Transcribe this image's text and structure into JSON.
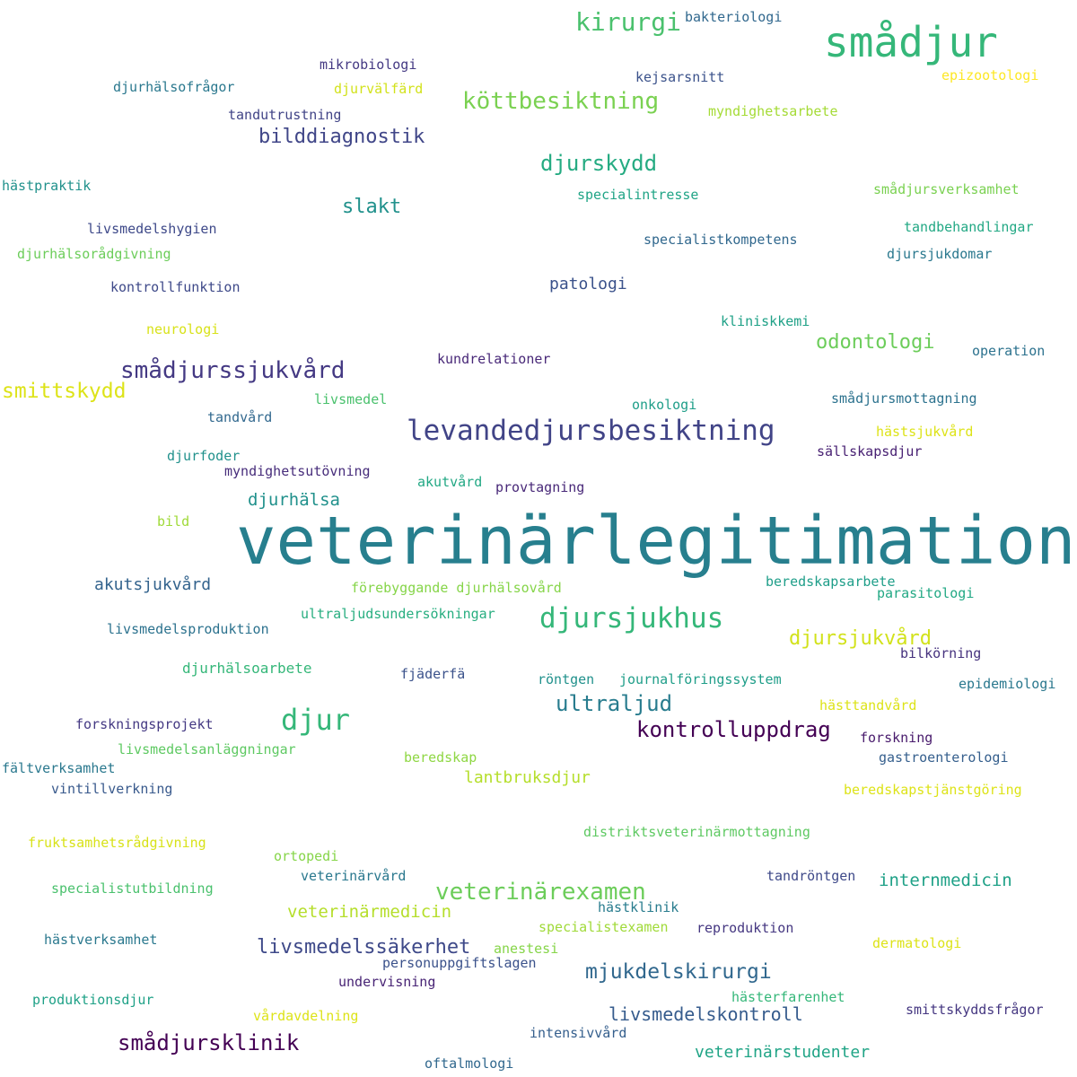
{
  "palette": {
    "dark_purple": "#46327e",
    "indigo": "#365c8d",
    "blue": "#3b528b",
    "teal": "#277f8e",
    "sea": "#1fa187",
    "green": "#4ac16d",
    "lime": "#a0da39",
    "yellow": "#dde318"
  },
  "words": [
    {
      "text": "veterinärlegitimation",
      "color": "#277f8e",
      "weight": 1.0
    },
    {
      "text": "smådjur",
      "color": "#35b779",
      "weight": 0.42
    },
    {
      "text": "kirurgi",
      "color": "#4ac16d",
      "weight": 0.28
    },
    {
      "text": "bakteriologi",
      "color": "#31688e",
      "weight": 0.14
    },
    {
      "text": "mikrobiologi",
      "color": "#443983",
      "weight": 0.14
    },
    {
      "text": "kejsarsnitt",
      "color": "#3b528b",
      "weight": 0.14
    },
    {
      "text": "epizootologi",
      "color": "#fde725",
      "weight": 0.14
    },
    {
      "text": "djurhälsofrågor",
      "color": "#2a788e",
      "weight": 0.14
    },
    {
      "text": "djurvälfärd",
      "color": "#d2e21b",
      "weight": 0.14
    },
    {
      "text": "köttbesiktning",
      "color": "#7ad151",
      "weight": 0.26
    },
    {
      "text": "myndighetsarbete",
      "color": "#a5db36",
      "weight": 0.14
    },
    {
      "text": "tandutrustning",
      "color": "#414487",
      "weight": 0.14
    },
    {
      "text": "bilddiagnostik",
      "color": "#404688",
      "weight": 0.24
    },
    {
      "text": "djurskydd",
      "color": "#25ab82",
      "weight": 0.26
    },
    {
      "text": "hästpraktik",
      "color": "#21918c",
      "weight": 0.14
    },
    {
      "text": "specialintresse",
      "color": "#20a486",
      "weight": 0.14
    },
    {
      "text": "smådjursverksamhet",
      "color": "#7ad151",
      "weight": 0.14
    },
    {
      "text": "slakt",
      "color": "#21918c",
      "weight": 0.24
    },
    {
      "text": "livsmedelshygien",
      "color": "#3e4989",
      "weight": 0.14
    },
    {
      "text": "tandbehandlingar",
      "color": "#22a884",
      "weight": 0.14
    },
    {
      "text": "specialistkompetens",
      "color": "#31688e",
      "weight": 0.14
    },
    {
      "text": "djurhälsorådgivning",
      "color": "#6ccd5a",
      "weight": 0.14
    },
    {
      "text": "djursjukdomar",
      "color": "#2a788e",
      "weight": 0.14
    },
    {
      "text": "patologi",
      "color": "#3b528b",
      "weight": 0.2
    },
    {
      "text": "kontrollfunktion",
      "color": "#3e4989",
      "weight": 0.14
    },
    {
      "text": "kliniskkemi",
      "color": "#1fa187",
      "weight": 0.14
    },
    {
      "text": "neurologi",
      "color": "#d8e219",
      "weight": 0.14
    },
    {
      "text": "odontologi",
      "color": "#6ccd5a",
      "weight": 0.24
    },
    {
      "text": "kundrelationer",
      "color": "#482878",
      "weight": 0.14
    },
    {
      "text": "operation",
      "color": "#2c728e",
      "weight": 0.14
    },
    {
      "text": "smådjurssjukvård",
      "color": "#443983",
      "weight": 0.28
    },
    {
      "text": "smittskydd",
      "color": "#dde318",
      "weight": 0.26
    },
    {
      "text": "livsmedel",
      "color": "#4ac16d",
      "weight": 0.14
    },
    {
      "text": "onkologi",
      "color": "#1f9e89",
      "weight": 0.14
    },
    {
      "text": "smådjursmottagning",
      "color": "#2c728e",
      "weight": 0.14
    },
    {
      "text": "tandvård",
      "color": "#31688e",
      "weight": 0.14
    },
    {
      "text": "levandedjursbesiktning",
      "color": "#414487",
      "weight": 0.33
    },
    {
      "text": "hästsjukvård",
      "color": "#dde318",
      "weight": 0.14
    },
    {
      "text": "djurfoder",
      "color": "#21918c",
      "weight": 0.14
    },
    {
      "text": "sällskapsdjur",
      "color": "#482173",
      "weight": 0.14
    },
    {
      "text": "myndighetsutövning",
      "color": "#472d7b",
      "weight": 0.14
    },
    {
      "text": "akutvård",
      "color": "#22a884",
      "weight": 0.14
    },
    {
      "text": "provtagning",
      "color": "#482878",
      "weight": 0.14
    },
    {
      "text": "djurhälsa",
      "color": "#21918c",
      "weight": 0.2
    },
    {
      "text": "bild",
      "color": "#a0da39",
      "weight": 0.14
    },
    {
      "text": "beredskapsarbete",
      "color": "#1f9e89",
      "weight": 0.14
    },
    {
      "text": "akutsjukvård",
      "color": "#33638d",
      "weight": 0.2
    },
    {
      "text": "förebyggande djurhälsovård",
      "color": "#86d549",
      "weight": 0.14
    },
    {
      "text": "parasitologi",
      "color": "#22a884",
      "weight": 0.14
    },
    {
      "text": "djursjukhus",
      "color": "#35b779",
      "weight": 0.33
    },
    {
      "text": "ultraljudsundersökningar",
      "color": "#28ae80",
      "weight": 0.14
    },
    {
      "text": "livsmedelsproduktion",
      "color": "#2c728e",
      "weight": 0.14
    },
    {
      "text": "djursjukvård",
      "color": "#d2e21b",
      "weight": 0.24
    },
    {
      "text": "bilkörning",
      "color": "#46327e",
      "weight": 0.14
    },
    {
      "text": "djurhälsoarbete",
      "color": "#35b779",
      "weight": 0.16
    },
    {
      "text": "fjäderfä",
      "color": "#3b528b",
      "weight": 0.14
    },
    {
      "text": "röntgen",
      "color": "#21918c",
      "weight": 0.14
    },
    {
      "text": "journalföringssystem",
      "color": "#1f9e89",
      "weight": 0.14
    },
    {
      "text": "epidemiologi",
      "color": "#2a788e",
      "weight": 0.14
    },
    {
      "text": "ultraljud",
      "color": "#287c8e",
      "weight": 0.26
    },
    {
      "text": "hästtandvård",
      "color": "#dde318",
      "weight": 0.14
    },
    {
      "text": "forskningsprojekt",
      "color": "#443983",
      "weight": 0.14
    },
    {
      "text": "djur",
      "color": "#35b779",
      "weight": 0.34
    },
    {
      "text": "kontrolluppdrag",
      "color": "#440154",
      "weight": 0.26
    },
    {
      "text": "livsmedelsanläggningar",
      "color": "#5ec962",
      "weight": 0.14
    },
    {
      "text": "forskning",
      "color": "#481a6c",
      "weight": 0.14
    },
    {
      "text": "fältverksamhet",
      "color": "#2a788e",
      "weight": 0.14
    },
    {
      "text": "beredskap",
      "color": "#8fd744",
      "weight": 0.14
    },
    {
      "text": "gastroenterologi",
      "color": "#355f8d",
      "weight": 0.14
    },
    {
      "text": "lantbruksdjur",
      "color": "#b5de2b",
      "weight": 0.2
    },
    {
      "text": "vintillverkning",
      "color": "#38598c",
      "weight": 0.14
    },
    {
      "text": "beredskapstjänstgöring",
      "color": "#dde318",
      "weight": 0.14
    },
    {
      "text": "distriktsveterinärmottagning",
      "color": "#5ec962",
      "weight": 0.14
    },
    {
      "text": "fruktsamhetsrådgivning",
      "color": "#d8e219",
      "weight": 0.14
    },
    {
      "text": "ortopedi",
      "color": "#86d549",
      "weight": 0.14
    },
    {
      "text": "veterinärvård",
      "color": "#2a788e",
      "weight": 0.14
    },
    {
      "text": "tandröntgen",
      "color": "#3e4989",
      "weight": 0.14
    },
    {
      "text": "internmedicin",
      "color": "#1fa187",
      "weight": 0.2
    },
    {
      "text": "specialistutbildning",
      "color": "#4ac16d",
      "weight": 0.14
    },
    {
      "text": "veterinärexamen",
      "color": "#6ccd5a",
      "weight": 0.28
    },
    {
      "text": "hästklinik",
      "color": "#287c8e",
      "weight": 0.14
    },
    {
      "text": "veterinärmedicin",
      "color": "#b5de2b",
      "weight": 0.2
    },
    {
      "text": "specialistexamen",
      "color": "#a0da39",
      "weight": 0.14
    },
    {
      "text": "reproduktion",
      "color": "#453781",
      "weight": 0.14
    },
    {
      "text": "hästverksamhet",
      "color": "#2a788e",
      "weight": 0.14
    },
    {
      "text": "livsmedelssäkerhet",
      "color": "#3e4989",
      "weight": 0.24
    },
    {
      "text": "anestesi",
      "color": "#86d549",
      "weight": 0.14
    },
    {
      "text": "dermatologi",
      "color": "#dde318",
      "weight": 0.14
    },
    {
      "text": "personuppgiftslagen",
      "color": "#3b528b",
      "weight": 0.14
    },
    {
      "text": "mjukdelskirurgi",
      "color": "#31688e",
      "weight": 0.26
    },
    {
      "text": "undervisning",
      "color": "#482475",
      "weight": 0.14
    },
    {
      "text": "produktionsdjur",
      "color": "#1fa187",
      "weight": 0.14
    },
    {
      "text": "hästerfarenhet",
      "color": "#35b779",
      "weight": 0.14
    },
    {
      "text": "livsmedelskontroll",
      "color": "#365c8d",
      "weight": 0.22
    },
    {
      "text": "smittskyddsfrågor",
      "color": "#453781",
      "weight": 0.14
    },
    {
      "text": "vårdavdelning",
      "color": "#dde318",
      "weight": 0.14
    },
    {
      "text": "smådjursklinik",
      "color": "#440154",
      "weight": 0.26
    },
    {
      "text": "intensivvård",
      "color": "#355f8d",
      "weight": 0.14
    },
    {
      "text": "veterinärstudenter",
      "color": "#20a486",
      "weight": 0.2
    },
    {
      "text": "oftalmologi",
      "color": "#31688e",
      "weight": 0.14
    }
  ]
}
